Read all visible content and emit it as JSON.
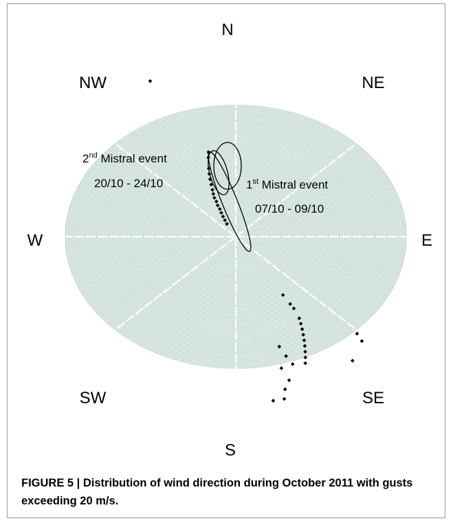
{
  "chart_data": {
    "type": "scatter",
    "subtype": "polar wind-direction plot",
    "background_color": "#cfe0dc",
    "directions": [
      "N",
      "NE",
      "E",
      "SE",
      "S",
      "SW",
      "W",
      "NW"
    ],
    "annotations": [
      {
        "text": "2nd Mistral event",
        "main": "2",
        "sup": "nd",
        "rest": " Mistral event"
      },
      {
        "text": "20/10 - 24/10"
      },
      {
        "text": "1st Mistral event",
        "main": "1",
        "sup": "st",
        "rest": " Mistral event"
      },
      {
        "text": "07/10 - 09/10"
      }
    ],
    "points": [
      {
        "direction_deg": 337,
        "radius": 1.28
      },
      {
        "direction_deg": 343,
        "radius": 0.54
      },
      {
        "direction_deg": 342,
        "radius": 0.5
      },
      {
        "direction_deg": 341,
        "radius": 0.46
      },
      {
        "direction_deg": 340,
        "radius": 0.42
      },
      {
        "direction_deg": 339,
        "radius": 0.38
      },
      {
        "direction_deg": 338,
        "radius": 0.35
      },
      {
        "direction_deg": 337,
        "radius": 0.32
      },
      {
        "direction_deg": 337,
        "radius": 0.29
      },
      {
        "direction_deg": 336,
        "radius": 0.26
      },
      {
        "direction_deg": 336,
        "radius": 0.23
      },
      {
        "direction_deg": 335,
        "radius": 0.2
      },
      {
        "direction_deg": 334,
        "radius": 0.17
      },
      {
        "direction_deg": 333,
        "radius": 0.14
      },
      {
        "direction_deg": 332,
        "radius": 0.11
      },
      {
        "direction_deg": 345,
        "radius": 0.62
      },
      {
        "direction_deg": 346,
        "radius": 0.66
      },
      {
        "direction_deg": 148,
        "radius": 0.52
      },
      {
        "direction_deg": 148,
        "radius": 0.6
      },
      {
        "direction_deg": 148,
        "radius": 0.64
      },
      {
        "direction_deg": 149,
        "radius": 0.72
      },
      {
        "direction_deg": 150,
        "radius": 0.76
      },
      {
        "direction_deg": 151,
        "radius": 0.8
      },
      {
        "direction_deg": 153,
        "radius": 0.88
      },
      {
        "direction_deg": 154,
        "radius": 0.92
      },
      {
        "direction_deg": 155,
        "radius": 0.96
      },
      {
        "direction_deg": 156,
        "radius": 1.0
      },
      {
        "direction_deg": 157,
        "radius": 1.04
      },
      {
        "direction_deg": 152,
        "radius": 0.84
      },
      {
        "direction_deg": 163,
        "radius": 0.87
      },
      {
        "direction_deg": 162,
        "radius": 0.95
      },
      {
        "direction_deg": 161,
        "radius": 1.02
      },
      {
        "direction_deg": 165,
        "radius": 1.03
      },
      {
        "direction_deg": 164,
        "radius": 1.13
      },
      {
        "direction_deg": 166,
        "radius": 1.19
      },
      {
        "direction_deg": 167,
        "radius": 1.26
      },
      {
        "direction_deg": 170,
        "radius": 1.26
      },
      {
        "direction_deg": 136,
        "radius": 1.02
      },
      {
        "direction_deg": 137,
        "radius": 1.08
      },
      {
        "direction_deg": 144,
        "radius": 1.16
      }
    ]
  },
  "caption": {
    "bold_prefix": "FIGURE 5 | Distribution of wind direction during October 2011 with gusts exceeding 20 m/s."
  }
}
